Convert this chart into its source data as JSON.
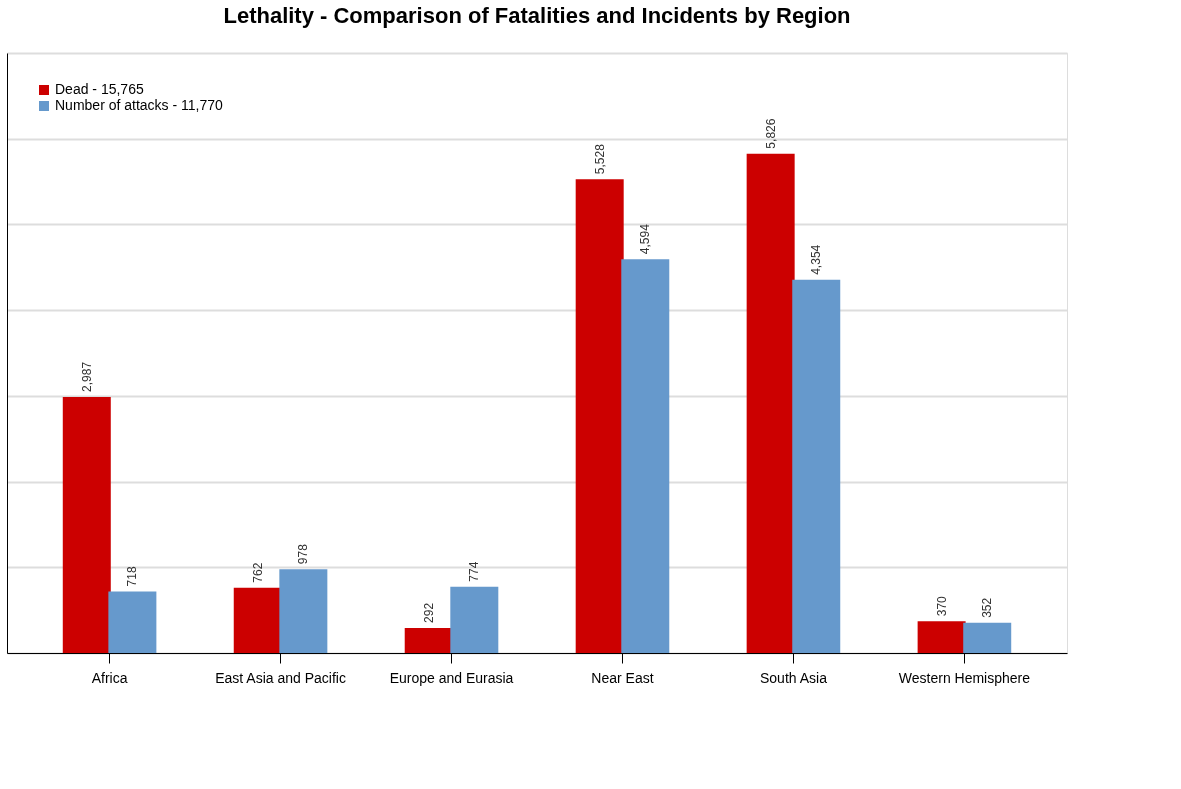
{
  "chart_data": {
    "type": "bar",
    "title": "Lethality - Comparison of Fatalities and Incidents by Region",
    "categories": [
      "Africa",
      "East Asia and Pacific",
      "Europe and Eurasia",
      "Near East",
      "South Asia",
      "Western Hemisphere"
    ],
    "series": [
      {
        "name": "Dead - 15,765",
        "color": "#cc0000",
        "values": [
          2987,
          762,
          292,
          5528,
          5826,
          370
        ],
        "value_labels": [
          "2,987",
          "762",
          "292",
          "5,528",
          "5,826",
          "370"
        ]
      },
      {
        "name": "Number of attacks - 11,770",
        "color": "#6699cc",
        "values": [
          718,
          978,
          774,
          4594,
          4354,
          352
        ],
        "value_labels": [
          "718",
          "978",
          "774",
          "4,594",
          "4,354",
          "352"
        ]
      }
    ],
    "ylim": [
      0,
      7000
    ],
    "yticks": [
      {
        "value": 0,
        "label": null
      },
      {
        "value": 1000,
        "label": null
      },
      {
        "value": 2000,
        "label": null
      },
      {
        "value": 3000,
        "label": null
      },
      {
        "value": 4000,
        "label": null
      },
      {
        "value": 5000,
        "label": null
      },
      {
        "value": 6000,
        "label": null
      },
      {
        "value": 7000,
        "label": null
      }
    ],
    "grid": "y",
    "legend": "top left"
  }
}
